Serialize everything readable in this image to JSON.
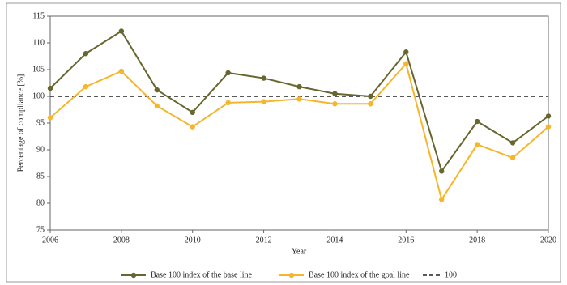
{
  "chart_data": {
    "type": "line",
    "x_label": "Year",
    "y_label": "Percentage of compliance [%]",
    "x": [
      2006,
      2007,
      2008,
      2009,
      2010,
      2011,
      2012,
      2013,
      2014,
      2015,
      2016,
      2017,
      2018,
      2019,
      2020
    ],
    "series": [
      {
        "name": "Base 100 index of the base line",
        "color": "#66662e",
        "values": [
          101.5,
          108,
          112.2,
          101.2,
          97,
          104.4,
          103.4,
          101.8,
          100.5,
          100,
          108.3,
          86,
          95.3,
          91.3,
          96.3
        ]
      },
      {
        "name": "Base 100 index of the goal line",
        "color": "#f7b52c",
        "values": [
          96,
          101.8,
          104.7,
          98.2,
          94.3,
          98.8,
          99,
          99.5,
          98.6,
          98.6,
          106.1,
          80.7,
          91,
          88.5,
          94.3
        ]
      }
    ],
    "reference_line": {
      "name": "100",
      "value": 100,
      "color": "#222222"
    },
    "xlim": [
      2006,
      2020
    ],
    "xticks": [
      2006,
      2008,
      2010,
      2012,
      2014,
      2016,
      2018,
      2020
    ],
    "ylim": [
      75,
      115
    ],
    "yticks": [
      75,
      80,
      85,
      90,
      95,
      100,
      105,
      110,
      115
    ],
    "grid": false
  }
}
